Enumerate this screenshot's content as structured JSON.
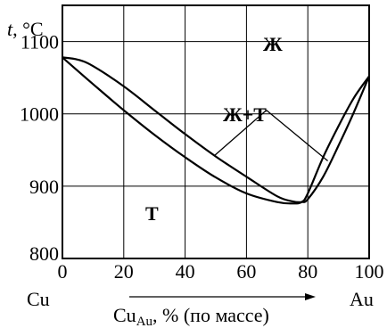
{
  "chart_data": {
    "type": "line",
    "ylabel_var": "t",
    "ylabel_unit": ", °C",
    "xlabel_main": "Cu",
    "xlabel_sub": "Au",
    "xlabel_rest": ", % (по массе)",
    "left_label": "Cu",
    "right_label": "Au",
    "xlim": [
      0,
      100
    ],
    "ylim": [
      800,
      1150
    ],
    "xticks": [
      0,
      20,
      40,
      60,
      80,
      100
    ],
    "yticks": [
      800,
      900,
      1000,
      1100
    ],
    "grid": true,
    "regions": {
      "liquid": "Ж",
      "two_phase": "Ж+Т",
      "solid": "Т"
    },
    "series": [
      {
        "x": [
          0,
          5,
          10,
          20,
          30,
          40,
          50,
          60,
          70,
          75,
          78,
          80,
          85,
          90,
          95,
          100
        ],
        "y": [
          1078,
          1075,
          1066,
          1038,
          1005,
          972,
          941,
          913,
          886,
          879,
          878,
          882,
          913,
          956,
          1002,
          1052
        ]
      },
      {
        "x": [
          0,
          10,
          20,
          30,
          40,
          50,
          60,
          70,
          75,
          78,
          80,
          85,
          90,
          95,
          100
        ],
        "y": [
          1078,
          1041,
          1005,
          971,
          940,
          912,
          890,
          878,
          876,
          878,
          890,
          940,
          983,
          1022,
          1052
        ]
      }
    ]
  }
}
